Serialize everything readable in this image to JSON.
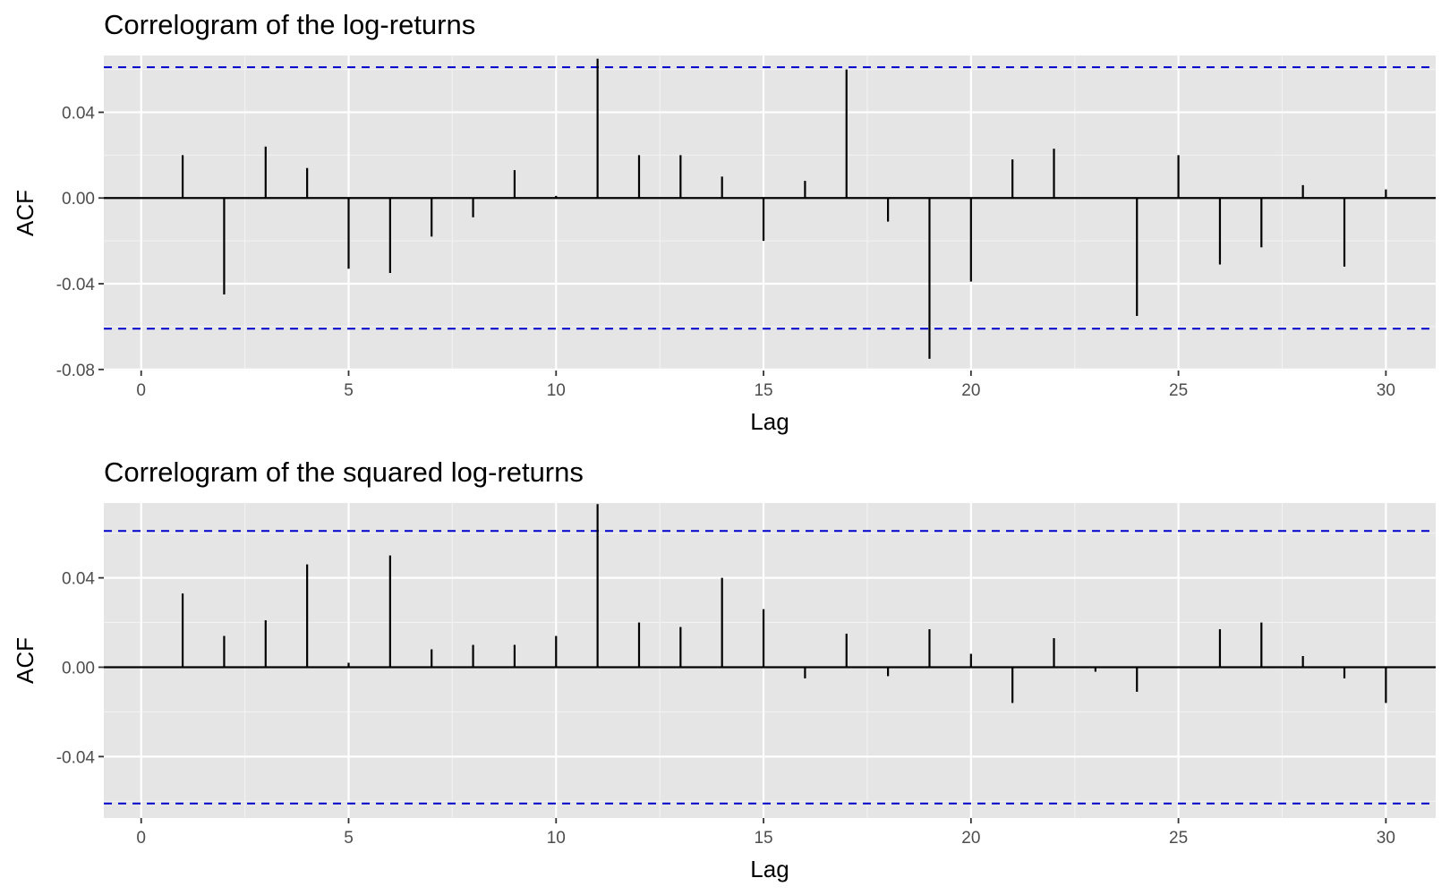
{
  "colors": {
    "panel_background": "#e5e5e5",
    "grid_major": "#ffffff",
    "grid_minor": "#f2f2f2",
    "bar": "#000000",
    "confidence_line": "#0000cc",
    "tick": "#333333",
    "tick_text": "#4d4d4d"
  },
  "chart_data": [
    {
      "type": "bar",
      "title": "Correlogram of the log-returns",
      "xlabel": "Lag",
      "ylabel": "ACF",
      "xlim": [
        -0.9,
        31.2
      ],
      "ylim": [
        -0.0805,
        0.0665
      ],
      "x_ticks": [
        0,
        5,
        10,
        15,
        20,
        25,
        30
      ],
      "x_tick_labels": [
        "0",
        "5",
        "10",
        "15",
        "20",
        "25",
        "30"
      ],
      "y_ticks": [
        -0.08,
        -0.04,
        0.0,
        0.04
      ],
      "y_tick_labels": [
        "-0.08",
        "-0.04",
        "0.00",
        "0.04"
      ],
      "grid": true,
      "confidence_bounds": [
        0.061,
        -0.061
      ],
      "lags": [
        1,
        2,
        3,
        4,
        5,
        6,
        7,
        8,
        9,
        10,
        11,
        12,
        13,
        14,
        15,
        16,
        17,
        18,
        19,
        20,
        21,
        22,
        23,
        24,
        25,
        26,
        27,
        28,
        29,
        30
      ],
      "values": [
        0.02,
        -0.045,
        0.024,
        0.014,
        -0.033,
        -0.035,
        -0.018,
        -0.009,
        0.013,
        0.001,
        0.065,
        0.02,
        0.02,
        0.01,
        -0.02,
        0.008,
        0.06,
        -0.011,
        -0.075,
        -0.039,
        0.018,
        0.023,
        0.0,
        -0.055,
        0.02,
        -0.031,
        -0.023,
        0.006,
        -0.032,
        0.004
      ]
    },
    {
      "type": "bar",
      "title": "Correlogram of the squared log-returns",
      "xlabel": "Lag",
      "ylabel": "ACF",
      "xlim": [
        -0.9,
        31.2
      ],
      "ylim": [
        -0.0675,
        0.0735
      ],
      "x_ticks": [
        0,
        5,
        10,
        15,
        20,
        25,
        30
      ],
      "x_tick_labels": [
        "0",
        "5",
        "10",
        "15",
        "20",
        "25",
        "30"
      ],
      "y_ticks": [
        -0.04,
        0.0,
        0.04
      ],
      "y_tick_labels": [
        "-0.04",
        "0.00",
        "0.04"
      ],
      "grid": true,
      "confidence_bounds": [
        0.061,
        -0.061
      ],
      "lags": [
        1,
        2,
        3,
        4,
        5,
        6,
        7,
        8,
        9,
        10,
        11,
        12,
        13,
        14,
        15,
        16,
        17,
        18,
        19,
        20,
        21,
        22,
        23,
        24,
        25,
        26,
        27,
        28,
        29,
        30
      ],
      "values": [
        0.033,
        0.014,
        0.021,
        0.046,
        0.002,
        0.05,
        0.008,
        0.01,
        0.01,
        0.014,
        0.073,
        0.02,
        0.018,
        0.04,
        0.026,
        -0.005,
        0.015,
        -0.004,
        0.017,
        0.006,
        -0.016,
        0.013,
        -0.002,
        -0.011,
        0.0,
        0.017,
        0.02,
        0.005,
        -0.005,
        -0.016
      ]
    }
  ]
}
